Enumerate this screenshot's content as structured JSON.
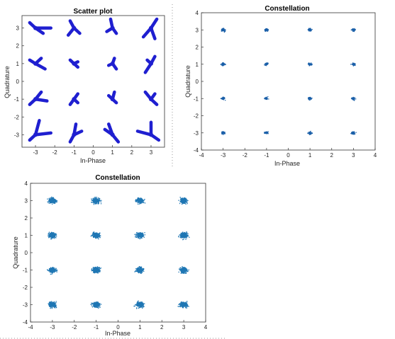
{
  "chart_data": [
    {
      "type": "scatter",
      "title": "Scatter plot",
      "xlabel": "In-Phase",
      "ylabel": "Quadrature",
      "xlim": [
        -3.7,
        3.7
      ],
      "ylim": [
        -3.7,
        3.7
      ],
      "xticks": [
        -3,
        -2,
        -1,
        0,
        1,
        2,
        3
      ],
      "yticks": [
        -3,
        -2,
        -1,
        0,
        1,
        2,
        3
      ],
      "marker_color": "#1f1fd0",
      "grid": false,
      "clusters": [
        {
          "x": -3,
          "y": 3,
          "arms": [
            [
              -3.3,
              3.3
            ],
            [
              -2.6,
              2.7
            ],
            [
              -2.2,
              3.0
            ]
          ]
        },
        {
          "x": -1,
          "y": 3,
          "arms": [
            [
              -1.2,
              3.4
            ],
            [
              -0.7,
              2.7
            ],
            [
              -1.3,
              2.6
            ]
          ]
        },
        {
          "x": 1,
          "y": 3,
          "arms": [
            [
              0.9,
              3.5
            ],
            [
              1.2,
              2.7
            ],
            [
              0.7,
              2.8
            ]
          ]
        },
        {
          "x": 3,
          "y": 3,
          "arms": [
            [
              3.3,
              3.5
            ],
            [
              2.6,
              2.5
            ],
            [
              3.2,
              2.4
            ]
          ]
        },
        {
          "x": -3,
          "y": 1,
          "arms": [
            [
              -3.3,
              1.2
            ],
            [
              -2.5,
              0.7
            ],
            [
              -2.7,
              1.3
            ]
          ]
        },
        {
          "x": -1,
          "y": 1,
          "arms": [
            [
              -1.2,
              1.2
            ],
            [
              -0.8,
              0.8
            ],
            [
              -0.8,
              1.1
            ]
          ]
        },
        {
          "x": 1,
          "y": 1,
          "arms": [
            [
              1.1,
              1.3
            ],
            [
              0.8,
              0.9
            ],
            [
              1.2,
              0.7
            ]
          ]
        },
        {
          "x": 3,
          "y": 1,
          "arms": [
            [
              3.2,
              1.4
            ],
            [
              2.7,
              0.5
            ],
            [
              2.8,
              1.2
            ]
          ]
        },
        {
          "x": -3,
          "y": -1,
          "arms": [
            [
              -3.3,
              -1.3
            ],
            [
              -2.7,
              -0.6
            ],
            [
              -2.4,
              -1.1
            ]
          ]
        },
        {
          "x": -1,
          "y": -1,
          "arms": [
            [
              -1.2,
              -1.3
            ],
            [
              -0.8,
              -0.7
            ],
            [
              -0.8,
              -1.2
            ]
          ]
        },
        {
          "x": 1,
          "y": -1,
          "arms": [
            [
              1.2,
              -1.2
            ],
            [
              0.8,
              -0.8
            ],
            [
              1.1,
              -0.6
            ]
          ]
        },
        {
          "x": 3,
          "y": -1,
          "arms": [
            [
              3.3,
              -1.3
            ],
            [
              2.7,
              -0.6
            ],
            [
              3.2,
              -0.7
            ]
          ]
        },
        {
          "x": -3,
          "y": -3,
          "arms": [
            [
              -3.3,
              -3.3
            ],
            [
              -2.8,
              -2.2
            ],
            [
              -2.2,
              -2.9
            ]
          ]
        },
        {
          "x": -1,
          "y": -3,
          "arms": [
            [
              -1.2,
              -3.4
            ],
            [
              -0.9,
              -2.4
            ],
            [
              -0.6,
              -2.8
            ]
          ]
        },
        {
          "x": 1,
          "y": -3,
          "arms": [
            [
              1.3,
              -3.4
            ],
            [
              0.8,
              -2.4
            ],
            [
              0.6,
              -2.7
            ]
          ]
        },
        {
          "x": 3,
          "y": -3,
          "arms": [
            [
              3.4,
              -3.3
            ],
            [
              2.3,
              -2.8
            ],
            [
              3.0,
              -2.3
            ]
          ]
        }
      ]
    },
    {
      "type": "scatter",
      "title": "Constellation",
      "xlabel": "In-Phase",
      "ylabel": "Quadrature",
      "xlim": [
        -4,
        4
      ],
      "ylim": [
        -4,
        4
      ],
      "xticks": [
        -4,
        -3,
        -2,
        -1,
        0,
        1,
        2,
        3,
        4
      ],
      "yticks": [
        -4,
        -3,
        -2,
        -1,
        0,
        1,
        2,
        3,
        4
      ],
      "marker_color": "#1a5fa8",
      "grid": false,
      "points": [
        [
          -3,
          3
        ],
        [
          -1,
          3
        ],
        [
          1,
          3
        ],
        [
          3,
          3
        ],
        [
          -3,
          1
        ],
        [
          -1,
          1
        ],
        [
          1,
          1
        ],
        [
          3,
          1
        ],
        [
          -3,
          -1
        ],
        [
          -1,
          -1
        ],
        [
          1,
          -1
        ],
        [
          3,
          -1
        ],
        [
          -3,
          -3
        ],
        [
          -1,
          -3
        ],
        [
          1,
          -3
        ],
        [
          3,
          -3
        ]
      ],
      "spread": 0.1
    },
    {
      "type": "scatter",
      "title": "Constellation",
      "xlabel": "In-Phase",
      "ylabel": "Quadrature",
      "xlim": [
        -4,
        4
      ],
      "ylim": [
        -4,
        4
      ],
      "xticks": [
        -4,
        -3,
        -2,
        -1,
        0,
        1,
        2,
        3,
        4
      ],
      "yticks": [
        -4,
        -3,
        -2,
        -1,
        0,
        1,
        2,
        3,
        4
      ],
      "marker_color": "#1f77b4",
      "grid": false,
      "points": [
        [
          -3,
          3
        ],
        [
          -1,
          3
        ],
        [
          1,
          3
        ],
        [
          3,
          3
        ],
        [
          -3,
          1
        ],
        [
          -1,
          1
        ],
        [
          1,
          1
        ],
        [
          3,
          1
        ],
        [
          -3,
          -1
        ],
        [
          -1,
          -1
        ],
        [
          1,
          -1
        ],
        [
          3,
          -1
        ],
        [
          -3,
          -3
        ],
        [
          -1,
          -3
        ],
        [
          1,
          -3
        ],
        [
          3,
          -3
        ]
      ],
      "spread": 0.2
    }
  ]
}
